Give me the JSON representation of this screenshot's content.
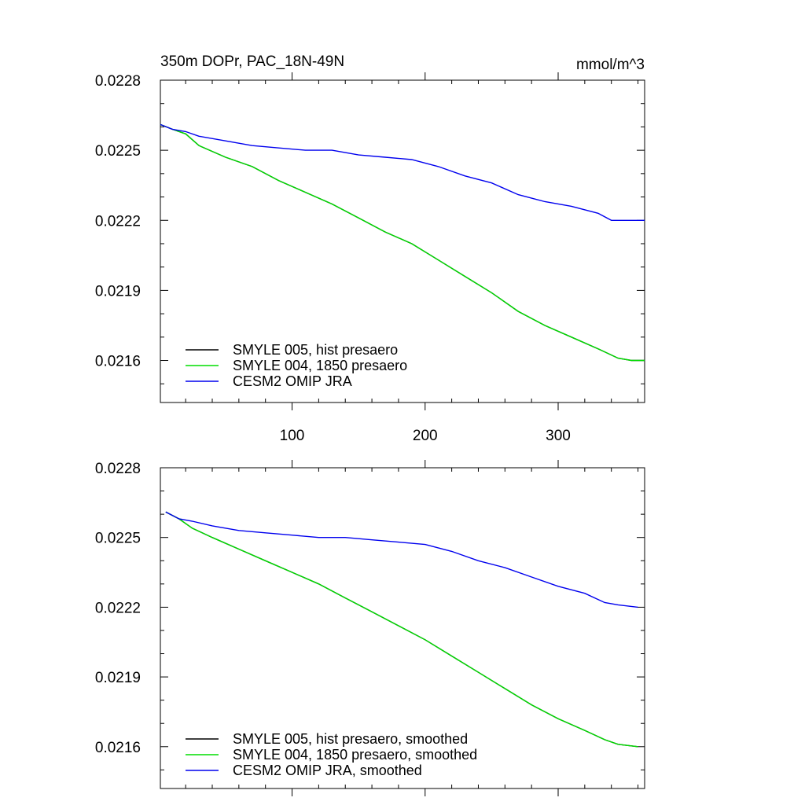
{
  "chart_data": [
    {
      "type": "line",
      "title": "350m DOPr, PAC_18N-49N",
      "units": "mmol/m^3",
      "xlim": [
        1,
        365
      ],
      "ylim": [
        0.02142,
        0.0228
      ],
      "yticks": [
        "0.0228",
        "0.0225",
        "0.0222",
        "0.0219",
        "0.0216"
      ],
      "xticks": [
        "100",
        "200",
        "300"
      ],
      "grid": false,
      "legend_position": "bottom-left",
      "series": [
        {
          "name": "SMYLE 005, hist presaero",
          "color": "#000000",
          "x": [
            1,
            10,
            20,
            30,
            50,
            70,
            90,
            110,
            130,
            150,
            170,
            190,
            210,
            230,
            250,
            270,
            290,
            310,
            330,
            345,
            355,
            365
          ],
          "values": [
            0.02261,
            0.02259,
            0.02257,
            0.02252,
            0.02247,
            0.02243,
            0.02237,
            0.02232,
            0.02227,
            0.02221,
            0.02215,
            0.0221,
            0.02203,
            0.02196,
            0.02189,
            0.02181,
            0.02175,
            0.0217,
            0.02165,
            0.02161,
            0.0216,
            0.0216
          ]
        },
        {
          "name": "SMYLE 004, 1850 presaero",
          "color": "#00dd00",
          "x": [
            1,
            10,
            20,
            30,
            50,
            70,
            90,
            110,
            130,
            150,
            170,
            190,
            210,
            230,
            250,
            270,
            290,
            310,
            330,
            345,
            355,
            365
          ],
          "values": [
            0.02261,
            0.02259,
            0.02257,
            0.02252,
            0.02247,
            0.02243,
            0.02237,
            0.02232,
            0.02227,
            0.02221,
            0.02215,
            0.0221,
            0.02203,
            0.02196,
            0.02189,
            0.02181,
            0.02175,
            0.0217,
            0.02165,
            0.02161,
            0.0216,
            0.0216
          ]
        },
        {
          "name": "CESM2 OMIP JRA",
          "color": "#0000ee",
          "x": [
            1,
            10,
            20,
            30,
            50,
            70,
            90,
            110,
            130,
            150,
            170,
            190,
            210,
            230,
            250,
            270,
            290,
            310,
            330,
            340,
            350,
            365
          ],
          "values": [
            0.02261,
            0.02259,
            0.02258,
            0.02256,
            0.02254,
            0.02252,
            0.02251,
            0.0225,
            0.0225,
            0.02248,
            0.02247,
            0.02246,
            0.02243,
            0.02239,
            0.02236,
            0.02231,
            0.02228,
            0.02226,
            0.02223,
            0.0222,
            0.0222,
            0.0222
          ]
        }
      ]
    },
    {
      "type": "line",
      "xlim": [
        1,
        365
      ],
      "ylim": [
        0.02142,
        0.0228
      ],
      "yticks": [
        "0.0228",
        "0.0225",
        "0.0222",
        "0.0219",
        "0.0216"
      ],
      "grid": false,
      "legend_position": "bottom-left",
      "series": [
        {
          "name": "SMYLE 005, hist presaero, smoothed",
          "color": "#000000",
          "x": [
            5,
            15,
            25,
            40,
            60,
            80,
            100,
            120,
            140,
            160,
            180,
            200,
            220,
            240,
            260,
            280,
            300,
            320,
            335,
            345,
            360
          ],
          "values": [
            0.02261,
            0.02258,
            0.02254,
            0.0225,
            0.02245,
            0.0224,
            0.02235,
            0.0223,
            0.02224,
            0.02218,
            0.02212,
            0.02206,
            0.02199,
            0.02192,
            0.02185,
            0.02178,
            0.02172,
            0.02167,
            0.02163,
            0.02161,
            0.0216
          ]
        },
        {
          "name": "SMYLE 004, 1850 presaero, smoothed",
          "color": "#00dd00",
          "x": [
            5,
            15,
            25,
            40,
            60,
            80,
            100,
            120,
            140,
            160,
            180,
            200,
            220,
            240,
            260,
            280,
            300,
            320,
            335,
            345,
            360
          ],
          "values": [
            0.02261,
            0.02258,
            0.02254,
            0.0225,
            0.02245,
            0.0224,
            0.02235,
            0.0223,
            0.02224,
            0.02218,
            0.02212,
            0.02206,
            0.02199,
            0.02192,
            0.02185,
            0.02178,
            0.02172,
            0.02167,
            0.02163,
            0.02161,
            0.0216
          ]
        },
        {
          "name": "CESM2 OMIP JRA, smoothed",
          "color": "#0000ee",
          "x": [
            5,
            15,
            25,
            40,
            60,
            80,
            100,
            120,
            140,
            160,
            180,
            200,
            220,
            240,
            260,
            280,
            300,
            320,
            335,
            345,
            360
          ],
          "values": [
            0.02261,
            0.02258,
            0.02257,
            0.02255,
            0.02253,
            0.02252,
            0.02251,
            0.0225,
            0.0225,
            0.02249,
            0.02248,
            0.02247,
            0.02244,
            0.0224,
            0.02237,
            0.02233,
            0.02229,
            0.02226,
            0.02222,
            0.02221,
            0.0222
          ]
        }
      ]
    }
  ]
}
